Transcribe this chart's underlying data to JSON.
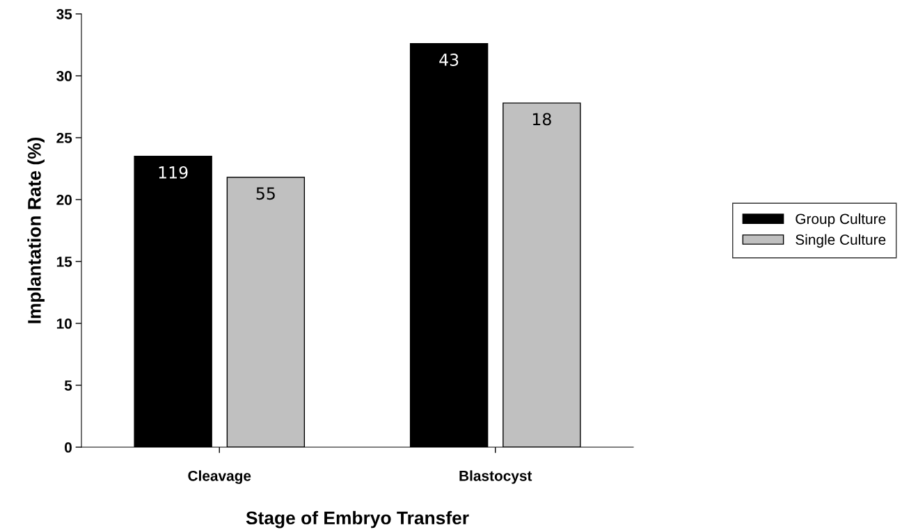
{
  "chart_data": {
    "type": "bar",
    "xlabel": "Stage of Embryo Transfer",
    "ylabel": "Implantation Rate (%)",
    "categories": [
      "Cleavage",
      "Blastocyst"
    ],
    "series": [
      {
        "name": "Group Culture",
        "color": "#000000",
        "values": [
          23.5,
          32.6
        ]
      },
      {
        "name": "Single Culture",
        "color": "#c0c0c0",
        "values": [
          21.8,
          27.8
        ]
      }
    ],
    "annotations": [
      "119",
      "55",
      "43",
      "18"
    ],
    "ylim": [
      0,
      35
    ],
    "yticks": [
      0,
      5,
      10,
      15,
      20,
      25,
      30,
      35
    ],
    "grid": false,
    "legend": "right"
  }
}
